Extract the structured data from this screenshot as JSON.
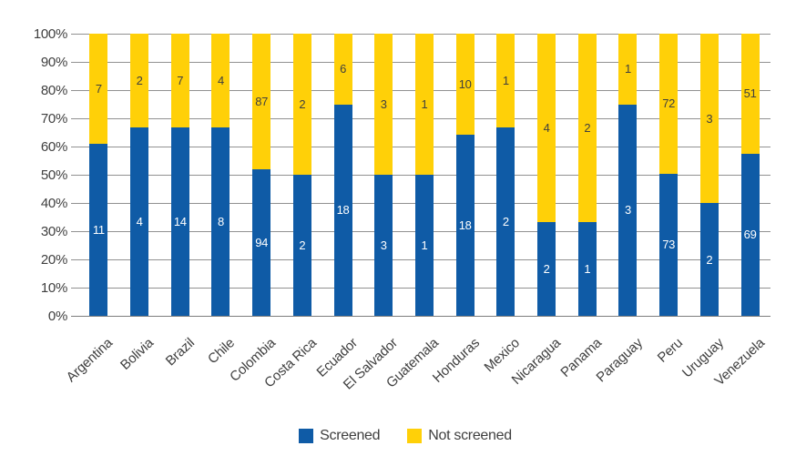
{
  "chart_data": {
    "type": "bar",
    "variant": "stacked-100-percent",
    "title": "",
    "xlabel": "",
    "ylabel": "",
    "ylim": [
      0,
      100
    ],
    "grid": true,
    "legend_position": "bottom",
    "y_tick_labels": [
      "100%",
      "90%",
      "80%",
      "70%",
      "60%",
      "50%",
      "40%",
      "30%",
      "20%",
      "10%",
      "0%"
    ],
    "categories": [
      "Argentina",
      "Bolivia",
      "Brazil",
      "Chile",
      "Colombia",
      "Costa Rica",
      "Ecuador",
      "El Salvador",
      "Guatemala",
      "Honduras",
      "Mexico",
      "Nicaragua",
      "Panama",
      "Paraguay",
      "Peru",
      "Uruguay",
      "Venezuela"
    ],
    "series": [
      {
        "name": "Screened",
        "color": "#0f5ba6",
        "label_color": "#ffffff",
        "values": [
          11,
          4,
          14,
          8,
          94,
          2,
          18,
          3,
          1,
          18,
          2,
          2,
          1,
          3,
          73,
          2,
          69
        ]
      },
      {
        "name": "Not screened",
        "color": "#ffd008",
        "label_color": "#3f3f3f",
        "values": [
          7,
          2,
          7,
          4,
          87,
          2,
          6,
          3,
          1,
          10,
          1,
          4,
          2,
          1,
          72,
          3,
          51
        ]
      }
    ]
  },
  "colors": {
    "gridline": "#919191",
    "axis_text": "#3f3f3f",
    "background": "#ffffff"
  }
}
